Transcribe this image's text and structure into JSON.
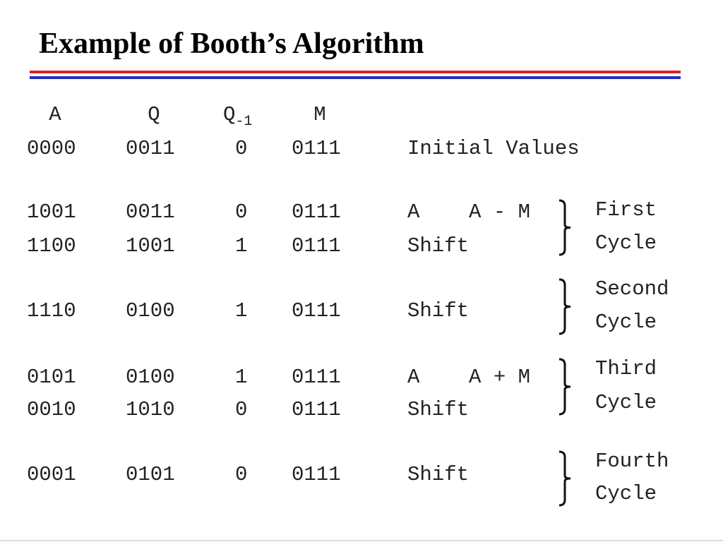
{
  "header": {
    "title": "Example of Booth’s Algorithm"
  },
  "table": {
    "columns": [
      "A",
      "Q",
      "Q",
      "M"
    ],
    "q_prev_subscript": "-1",
    "rows": [
      [
        "0000",
        "0011",
        "0",
        "0111",
        "Initial Values"
      ],
      [
        "1001",
        "0011",
        "0",
        "0111",
        "A    A - M"
      ],
      [
        "1100",
        "1001",
        "1",
        "0111",
        "Shift"
      ],
      [
        "1110",
        "0100",
        "1",
        "0111",
        "Shift"
      ],
      [
        "0101",
        "0100",
        "1",
        "0111",
        "A    A + M"
      ],
      [
        "0010",
        "1010",
        "0",
        "0111",
        "Shift"
      ],
      [
        "0001",
        "0101",
        "0",
        "0111",
        "Shift"
      ]
    ]
  },
  "cycles": [
    [
      "First",
      "Cycle"
    ],
    [
      "Second",
      "Cycle"
    ],
    [
      "Third",
      "Cycle"
    ],
    [
      "Fourth",
      "Cycle"
    ]
  ]
}
